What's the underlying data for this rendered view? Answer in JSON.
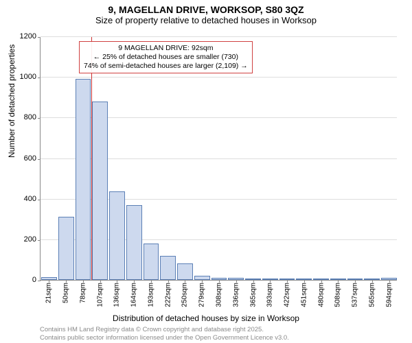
{
  "chart": {
    "type": "histogram",
    "title": "9, MAGELLAN DRIVE, WORKSOP, S80 3QZ",
    "subtitle": "Size of property relative to detached houses in Worksop",
    "ylabel": "Number of detached properties",
    "xlabel": "Distribution of detached houses by size in Worksop",
    "background_color": "#ffffff",
    "bar_fill": "#cdd9ee",
    "bar_border": "#5b7fb5",
    "grid_color": "#dddddd",
    "axis_color": "#888888",
    "ref_line_color": "#cc3030",
    "annotation_border": "#d04040",
    "ylim": [
      0,
      1200
    ],
    "ytick_step": 200,
    "yticks": [
      0,
      200,
      400,
      600,
      800,
      1000,
      1200
    ],
    "categories": [
      "21sqm",
      "50sqm",
      "78sqm",
      "107sqm",
      "136sqm",
      "164sqm",
      "193sqm",
      "222sqm",
      "250sqm",
      "279sqm",
      "308sqm",
      "336sqm",
      "365sqm",
      "393sqm",
      "422sqm",
      "451sqm",
      "480sqm",
      "508sqm",
      "537sqm",
      "565sqm",
      "594sqm"
    ],
    "values": [
      15,
      310,
      990,
      880,
      435,
      370,
      180,
      120,
      80,
      20,
      10,
      10,
      5,
      5,
      5,
      2,
      2,
      2,
      2,
      2,
      10
    ],
    "bar_width_ratio": 0.92,
    "ref_line_value_sqm": 92,
    "annotation": {
      "line1": "9 MAGELLAN DRIVE: 92sqm",
      "line2": "← 25% of detached houses are smaller (730)",
      "line3": "74% of semi-detached houses are larger (2,109) →"
    },
    "title_fontsize": 14,
    "subtitle_fontsize": 13,
    "label_fontsize": 12,
    "tick_fontsize": 11,
    "xtick_fontsize": 10,
    "annotation_fontsize": 10.5,
    "attribution_fontsize": 9.5
  },
  "attribution": {
    "line1": "Contains HM Land Registry data © Crown copyright and database right 2025.",
    "line2": "Contains public sector information licensed under the Open Government Licence v3.0."
  }
}
